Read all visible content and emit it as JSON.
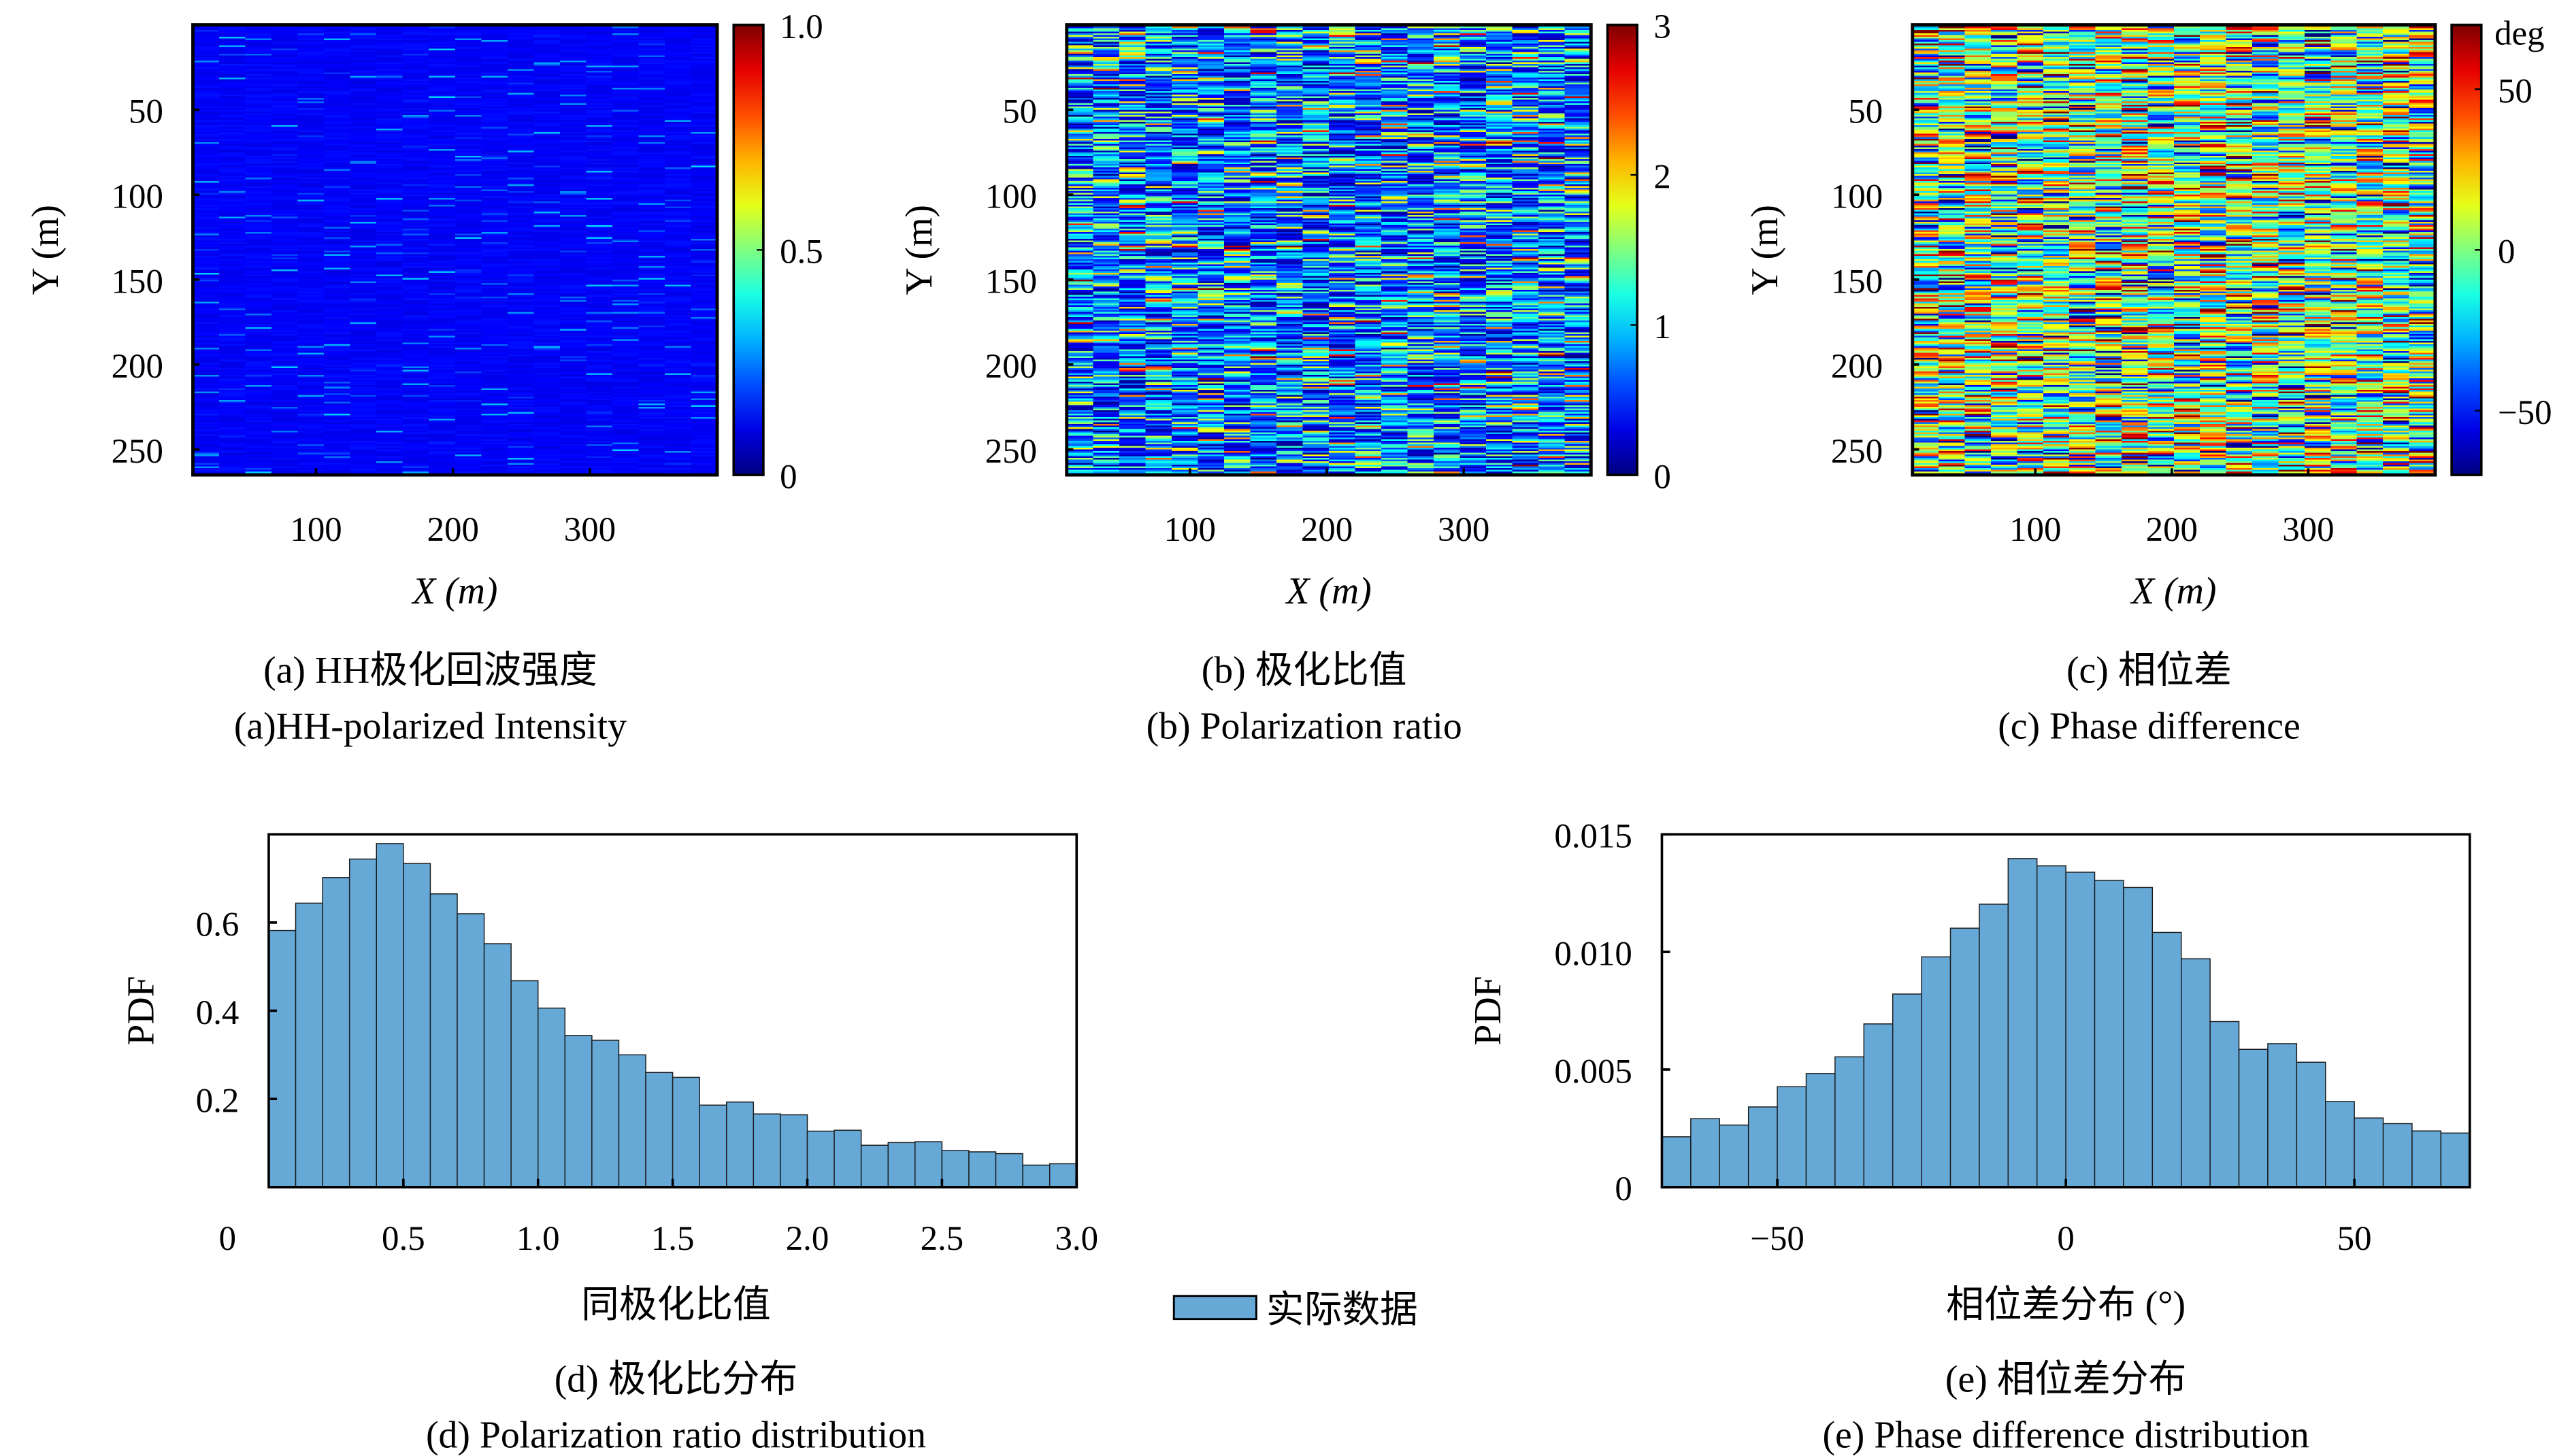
{
  "colors": {
    "bar_fill": "#66a9d7",
    "bar_edge": "#1a1a1a",
    "colormap": "jet"
  },
  "chart_data": [
    {
      "id": "a",
      "type": "heatmap",
      "xlabel": "X (m)",
      "ylabel": "Y (m)",
      "xlim": [
        10,
        393
      ],
      "ylim": [
        265,
        0
      ],
      "xticks": [
        100,
        200,
        300
      ],
      "yticks": [
        50,
        100,
        150,
        200,
        250
      ],
      "colorbar": {
        "range": [
          0,
          1.0
        ],
        "ticks": [
          "0",
          "0.5",
          "1.0"
        ],
        "unit": ""
      },
      "columns": 20,
      "rows": 265,
      "caption_cn": "(a) HH极化回波强度",
      "caption_en": "(a)HH-polarized Intensity"
    },
    {
      "id": "b",
      "type": "heatmap",
      "xlabel": "X (m)",
      "ylabel": "Y (m)",
      "xlim": [
        10,
        393
      ],
      "ylim": [
        265,
        0
      ],
      "xticks": [
        100,
        200,
        300
      ],
      "yticks": [
        50,
        100,
        150,
        200,
        250
      ],
      "colorbar": {
        "range": [
          0,
          3
        ],
        "ticks": [
          "0",
          "1",
          "2",
          "3"
        ],
        "unit": ""
      },
      "columns": 20,
      "rows": 265,
      "caption_cn": "(b) 极化比值",
      "caption_en": "(b) Polarization ratio"
    },
    {
      "id": "c",
      "type": "heatmap",
      "xlabel": "X (m)",
      "ylabel": "Y (m)",
      "xlim": [
        10,
        393
      ],
      "ylim": [
        265,
        0
      ],
      "xticks": [
        100,
        200,
        300
      ],
      "yticks": [
        50,
        100,
        150,
        200,
        250
      ],
      "colorbar": {
        "range": [
          -70,
          70
        ],
        "ticks": [
          "−50",
          "0",
          "50"
        ],
        "unit": "deg"
      },
      "columns": 20,
      "rows": 265,
      "caption_cn": "(c) 相位差",
      "caption_en": "(c) Phase difference"
    },
    {
      "id": "d",
      "type": "bar",
      "xlabel": "同极化比值",
      "ylabel": "PDF",
      "xlim": [
        0,
        3.0
      ],
      "ylim": [
        0,
        0.8
      ],
      "bin_start": 0.0,
      "bin_width": 0.1,
      "xtick_labels": [
        "0",
        "0.5",
        "1.0",
        "1.5",
        "2.0",
        "2.5",
        "3.0"
      ],
      "ytick_labels": [
        "0.2",
        "0.4",
        "0.6"
      ],
      "values": [
        0.582,
        0.644,
        0.702,
        0.744,
        0.779,
        0.734,
        0.665,
        0.62,
        0.552,
        0.468,
        0.406,
        0.344,
        0.333,
        0.3,
        0.26,
        0.249,
        0.186,
        0.193,
        0.166,
        0.164,
        0.127,
        0.129,
        0.095,
        0.101,
        0.103,
        0.083,
        0.08,
        0.076,
        0.05,
        0.053
      ],
      "series_name": "实际数据",
      "caption_cn": "(d) 极化比分布",
      "caption_en": "(d) Polarization ratio distribution"
    },
    {
      "id": "e",
      "type": "bar",
      "xlabel": "相位差分布 (°)",
      "ylabel": "PDF",
      "xlim": [
        -70,
        70
      ],
      "ylim": [
        0,
        0.015
      ],
      "bin_start": -70,
      "bin_width": 5,
      "xtick_labels": [
        "−50",
        "0",
        "50"
      ],
      "ytick_labels": [
        "0",
        "0.005",
        "0.010",
        "0.015"
      ],
      "values": [
        0.00214,
        0.00291,
        0.00264,
        0.00341,
        0.00427,
        0.00483,
        0.00554,
        0.00694,
        0.00821,
        0.00979,
        0.01101,
        0.01203,
        0.01397,
        0.01366,
        0.01339,
        0.01304,
        0.01274,
        0.01083,
        0.00971,
        0.00704,
        0.00586,
        0.0061,
        0.00531,
        0.00364,
        0.00294,
        0.0027,
        0.00239,
        0.0023
      ],
      "caption_cn": "(e) 相位差分布",
      "caption_en": "(e) Phase difference distribution"
    }
  ],
  "legend": {
    "label": "实际数据"
  }
}
